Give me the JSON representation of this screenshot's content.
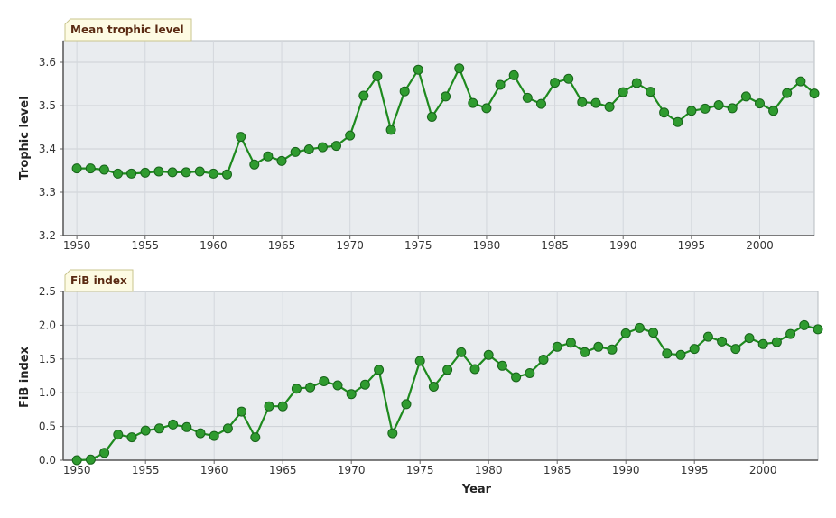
{
  "chart_data": [
    {
      "type": "line",
      "title": "Mean trophic level",
      "xlabel": "",
      "ylabel": "Trophic level",
      "xlim": [
        1949,
        2004
      ],
      "ylim": [
        3.2,
        3.65
      ],
      "xticks": [
        "1950",
        "1955",
        "1960",
        "1965",
        "1970",
        "1975",
        "1980",
        "1985",
        "1990",
        "1995",
        "2000"
      ],
      "yticks": [
        "3.2",
        "3.3",
        "3.4",
        "3.5",
        "3.6"
      ],
      "grid": true,
      "series_color": "#1e8a1e",
      "marker_color": "#2f9b2f",
      "x": [
        1950,
        1951,
        1952,
        1953,
        1954,
        1955,
        1956,
        1957,
        1958,
        1959,
        1960,
        1961,
        1962,
        1963,
        1964,
        1965,
        1966,
        1967,
        1968,
        1969,
        1970,
        1971,
        1972,
        1973,
        1974,
        1975,
        1976,
        1977,
        1978,
        1979,
        1980,
        1981,
        1982,
        1983,
        1984,
        1985,
        1986,
        1987,
        1988,
        1989,
        1990,
        1991,
        1992,
        1993,
        1994,
        1995,
        1996,
        1997,
        1998,
        1999,
        2000,
        2001,
        2002,
        2003,
        2004
      ],
      "values": [
        3.355,
        3.355,
        3.352,
        3.343,
        3.343,
        3.345,
        3.348,
        3.346,
        3.346,
        3.348,
        3.343,
        3.341,
        3.428,
        3.364,
        3.383,
        3.372,
        3.393,
        3.399,
        3.404,
        3.407,
        3.431,
        3.523,
        3.568,
        3.444,
        3.533,
        3.583,
        3.474,
        3.521,
        3.586,
        3.506,
        3.494,
        3.548,
        3.57,
        3.518,
        3.504,
        3.553,
        3.562,
        3.508,
        3.506,
        3.497,
        3.531,
        3.552,
        3.532,
        3.484,
        3.462,
        3.488,
        3.493,
        3.501,
        3.494,
        3.521,
        3.505,
        3.488,
        3.529,
        3.556,
        3.528
      ]
    },
    {
      "type": "line",
      "title": "FiB index",
      "xlabel": "Year",
      "ylabel": "FiB index",
      "xlim": [
        1949,
        2004
      ],
      "ylim": [
        0,
        2.5
      ],
      "xticks": [
        "1950",
        "1955",
        "1960",
        "1965",
        "1970",
        "1975",
        "1980",
        "1985",
        "1990",
        "1995",
        "2000"
      ],
      "yticks": [
        "0.0",
        "0.5",
        "1.0",
        "1.5",
        "2.0",
        "2.5"
      ],
      "grid": true,
      "series_color": "#1e8a1e",
      "marker_color": "#2f9b2f",
      "x": [
        1950,
        1951,
        1952,
        1953,
        1954,
        1955,
        1956,
        1957,
        1958,
        1959,
        1960,
        1961,
        1962,
        1963,
        1964,
        1965,
        1966,
        1967,
        1968,
        1969,
        1970,
        1971,
        1972,
        1973,
        1974,
        1975,
        1976,
        1977,
        1978,
        1979,
        1980,
        1981,
        1982,
        1983,
        1984,
        1985,
        1986,
        1987,
        1988,
        1989,
        1990,
        1991,
        1992,
        1993,
        1994,
        1995,
        1996,
        1997,
        1998,
        1999,
        2000,
        2001,
        2002,
        2003,
        2004
      ],
      "values": [
        0.0,
        0.01,
        0.11,
        0.38,
        0.34,
        0.44,
        0.47,
        0.53,
        0.49,
        0.4,
        0.36,
        0.47,
        0.72,
        0.34,
        0.8,
        0.8,
        1.06,
        1.08,
        1.17,
        1.11,
        0.98,
        1.12,
        1.34,
        0.4,
        0.83,
        1.47,
        1.09,
        1.34,
        1.6,
        1.35,
        1.56,
        1.4,
        1.23,
        1.29,
        1.49,
        1.68,
        1.74,
        1.6,
        1.68,
        1.64,
        1.88,
        1.96,
        1.89,
        1.58,
        1.56,
        1.65,
        1.83,
        1.76,
        1.65,
        1.81,
        1.72,
        1.75,
        1.87,
        2.0,
        1.94
      ]
    }
  ]
}
